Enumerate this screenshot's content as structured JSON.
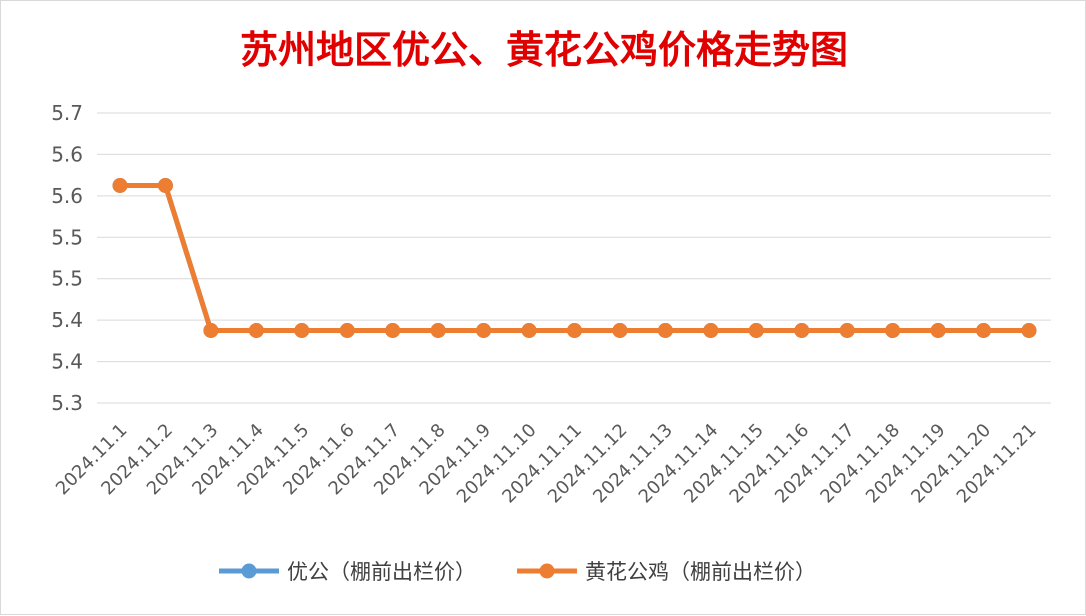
{
  "chart_data": {
    "type": "line",
    "title": "苏州地区优公、黄花公鸡价格走势图",
    "xlabel": "",
    "ylabel": "",
    "categories": [
      "2024.11.1",
      "2024.11.2",
      "2024.11.3",
      "2024.11.4",
      "2024.11.5",
      "2024.11.6",
      "2024.11.7",
      "2024.11.8",
      "2024.11.9",
      "2024.11.10",
      "2024.11.11",
      "2024.11.12",
      "2024.11.13",
      "2024.11.14",
      "2024.11.15",
      "2024.11.16",
      "2024.11.17",
      "2024.11.18",
      "2024.11.19",
      "2024.11.20",
      "2024.11.21"
    ],
    "y_ticks": [
      "5.7",
      "5.6",
      "5.6",
      "5.5",
      "5.5",
      "5.4",
      "5.4",
      "5.3"
    ],
    "ylim": [
      5.3,
      5.7
    ],
    "grid": true,
    "legend_position": "bottom",
    "series": [
      {
        "name": "优公（棚前出栏价）",
        "color": "#5B9BD5",
        "values": [
          5.6,
          5.6,
          5.4,
          5.4,
          5.4,
          5.4,
          5.4,
          5.4,
          5.4,
          5.4,
          5.4,
          5.4,
          5.4,
          5.4,
          5.4,
          5.4,
          5.4,
          5.4,
          5.4,
          5.4,
          5.4
        ]
      },
      {
        "name": "黄花公鸡（棚前出栏价）",
        "color": "#ED7D31",
        "values": [
          5.6,
          5.6,
          5.4,
          5.4,
          5.4,
          5.4,
          5.4,
          5.4,
          5.4,
          5.4,
          5.4,
          5.4,
          5.4,
          5.4,
          5.4,
          5.4,
          5.4,
          5.4,
          5.4,
          5.4,
          5.4
        ]
      }
    ]
  }
}
